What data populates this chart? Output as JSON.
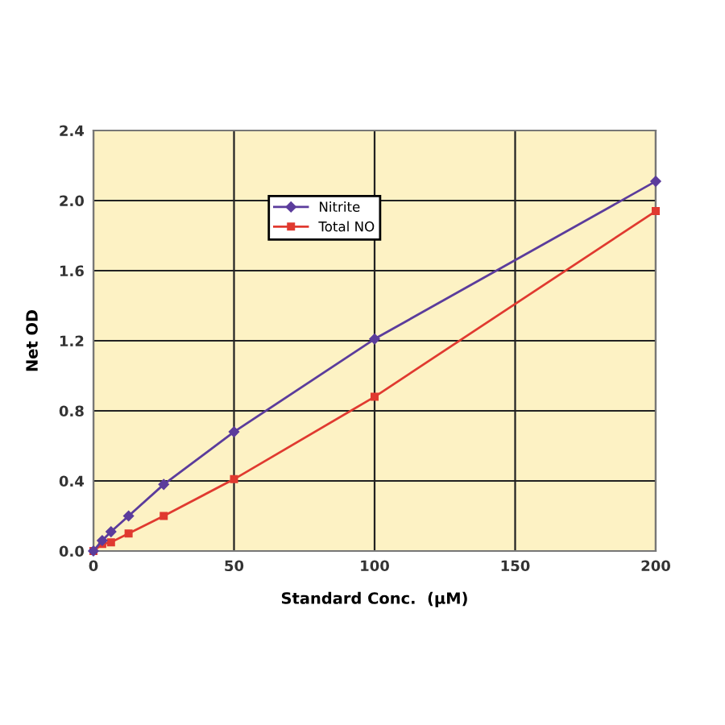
{
  "chart_data": {
    "type": "line",
    "xlabel": "Standard Conc.  (µM)",
    "ylabel": "Net OD",
    "x": [
      0,
      3.125,
      6.25,
      12.5,
      25,
      50,
      100,
      200
    ],
    "series": [
      {
        "name": "Nitrite",
        "color": "#5b3c9c",
        "marker": "diamond",
        "values": [
          0,
          0.06,
          0.11,
          0.2,
          0.38,
          0.68,
          1.21,
          2.11
        ]
      },
      {
        "name": "Total NO",
        "color": "#e03a30",
        "marker": "square",
        "values": [
          0,
          0.04,
          0.05,
          0.1,
          0.2,
          0.41,
          0.88,
          1.94
        ]
      }
    ],
    "xlim": [
      0,
      200
    ],
    "xticks": [
      0,
      50,
      100,
      150,
      200
    ],
    "ylim": [
      0,
      2.4
    ],
    "yticks": [
      {
        "value": 0,
        "label": "0.0"
      },
      {
        "value": 0.4,
        "label": "0.4"
      },
      {
        "value": 0.8,
        "label": "0.8"
      },
      {
        "value": 1.2,
        "label": "1.2"
      },
      {
        "value": 1.6,
        "label": "1.6"
      },
      {
        "value": 2.0,
        "label": "2.0"
      },
      {
        "value": 2.4,
        "label": "2.4"
      }
    ],
    "grid": true,
    "legend": "top left",
    "line_style": "solid"
  }
}
